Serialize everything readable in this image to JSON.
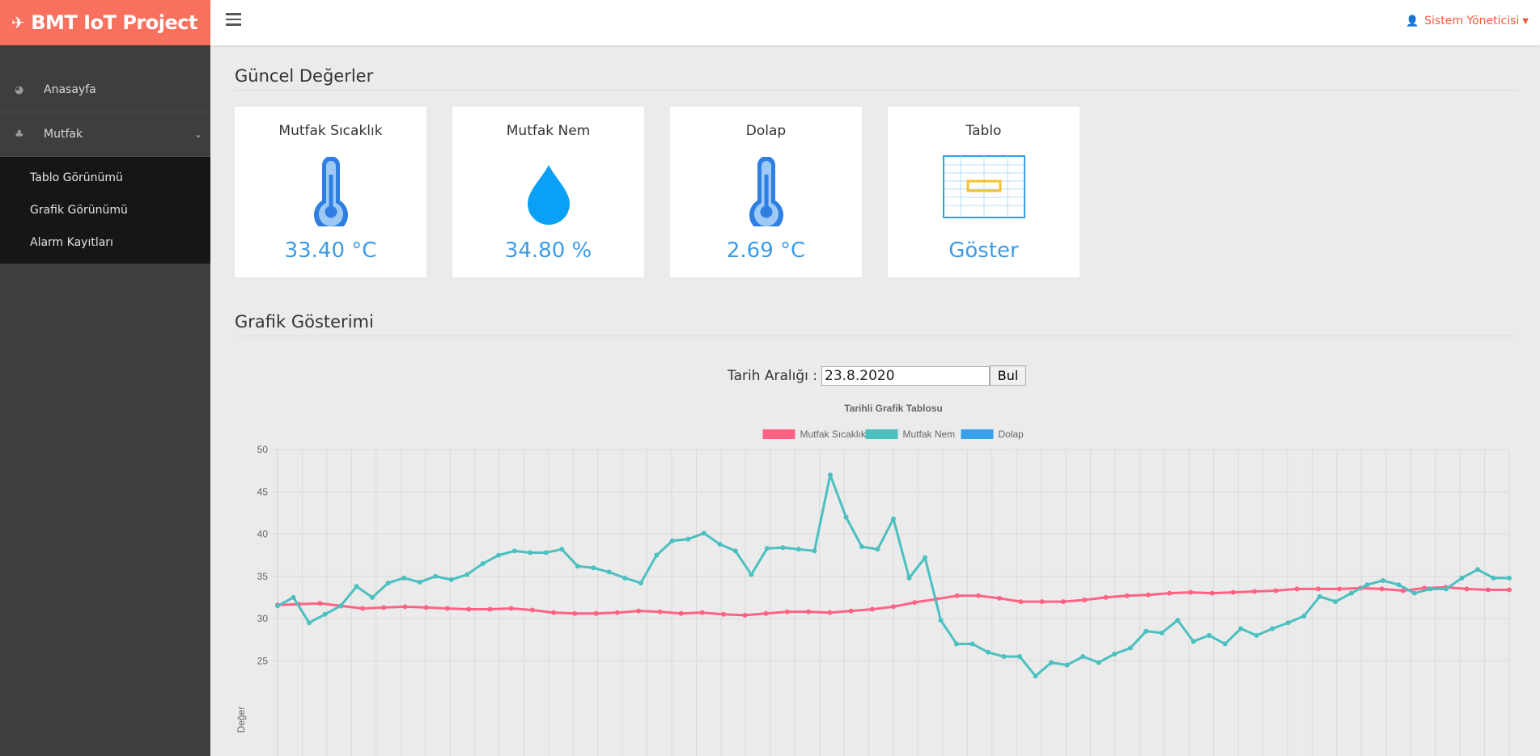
{
  "brand": {
    "title": "BMT IoT Project"
  },
  "sidebar": {
    "items": [
      {
        "label": "Anasayfa"
      },
      {
        "label": "Mutfak"
      }
    ],
    "subitems": [
      {
        "label": "Tablo Görünümü"
      },
      {
        "label": "Grafik Görünümü"
      },
      {
        "label": "Alarm Kayıtları"
      }
    ]
  },
  "topbar": {
    "user": "Sistem Yöneticisi"
  },
  "sections": {
    "current": "Güncel Değerler",
    "chart": "Grafik Gösterimi"
  },
  "cards": [
    {
      "title": "Mutfak Sıcaklık",
      "value": "33.40 °C",
      "icon": "thermometer-icon"
    },
    {
      "title": "Mutfak Nem",
      "value": "34.80 %",
      "icon": "water-drop-icon"
    },
    {
      "title": "Dolap",
      "value": "2.69 °C",
      "icon": "thermometer-icon"
    },
    {
      "title": "Tablo",
      "value": "Göster",
      "icon": "table-icon"
    }
  ],
  "filter": {
    "label": "Tarih Aralığı :",
    "date": "23.8.2020",
    "button": "Bul"
  },
  "colors": {
    "brand": "#f8715f",
    "sidebar": "#3e3e3e",
    "accent": "#3c9be6",
    "series1": "#ff6384",
    "series2": "#4bc0c0",
    "series3": "#36a2eb"
  },
  "chart_data": {
    "type": "line",
    "title": "Tarihli Grafik Tablosu",
    "ylabel": "Değer",
    "ylim": [
      20,
      50
    ],
    "yticks": [
      50,
      45,
      40,
      35,
      30,
      25
    ],
    "grid": true,
    "legend_position": "top",
    "series": [
      {
        "name": "Mutfak Sıcaklık",
        "color": "#ff6384",
        "values": [
          31.6,
          31.7,
          31.8,
          31.5,
          31.2,
          31.3,
          31.4,
          31.3,
          31.2,
          31.1,
          31.1,
          31.2,
          31.0,
          30.7,
          30.6,
          30.6,
          30.7,
          30.9,
          30.8,
          30.6,
          30.7,
          30.5,
          30.4,
          30.6,
          30.8,
          30.8,
          30.7,
          30.9,
          31.1,
          31.4,
          31.9,
          32.3,
          32.7,
          32.7,
          32.4,
          32.0,
          32.0,
          32.0,
          32.2,
          32.5,
          32.7,
          32.8,
          33.0,
          33.1,
          33.0,
          33.1,
          33.2,
          33.3,
          33.5,
          33.5,
          33.5,
          33.6,
          33.5,
          33.3,
          33.6,
          33.7,
          33.5,
          33.4,
          33.4
        ]
      },
      {
        "name": "Mutfak Nem",
        "color": "#4bc0c0",
        "values": [
          31.5,
          32.5,
          29.5,
          30.5,
          31.5,
          33.8,
          32.5,
          34.2,
          34.8,
          34.3,
          35.0,
          34.6,
          35.2,
          36.5,
          37.5,
          38.0,
          37.8,
          37.8,
          38.2,
          36.2,
          36.0,
          35.5,
          34.8,
          34.2,
          37.5,
          39.2,
          39.4,
          40.1,
          38.8,
          38.0,
          35.2,
          38.3,
          38.4,
          38.2,
          38.0,
          47.0,
          42.0,
          38.5,
          38.2,
          41.8,
          34.8,
          37.2,
          29.8,
          27.0,
          27.0,
          26.0,
          25.5,
          25.5,
          23.2,
          24.8,
          24.5,
          25.5,
          24.8,
          25.8,
          26.5,
          28.5,
          28.3,
          29.8,
          27.3,
          28.0,
          27.0,
          28.8,
          28.0,
          28.8,
          29.5,
          30.3,
          32.6,
          32.0,
          33.0,
          34.0,
          34.5,
          34.0,
          33.0,
          33.5,
          33.5,
          34.8,
          35.8,
          34.8,
          34.8
        ]
      },
      {
        "name": "Dolap",
        "color": "#36a2eb",
        "values": []
      }
    ]
  }
}
